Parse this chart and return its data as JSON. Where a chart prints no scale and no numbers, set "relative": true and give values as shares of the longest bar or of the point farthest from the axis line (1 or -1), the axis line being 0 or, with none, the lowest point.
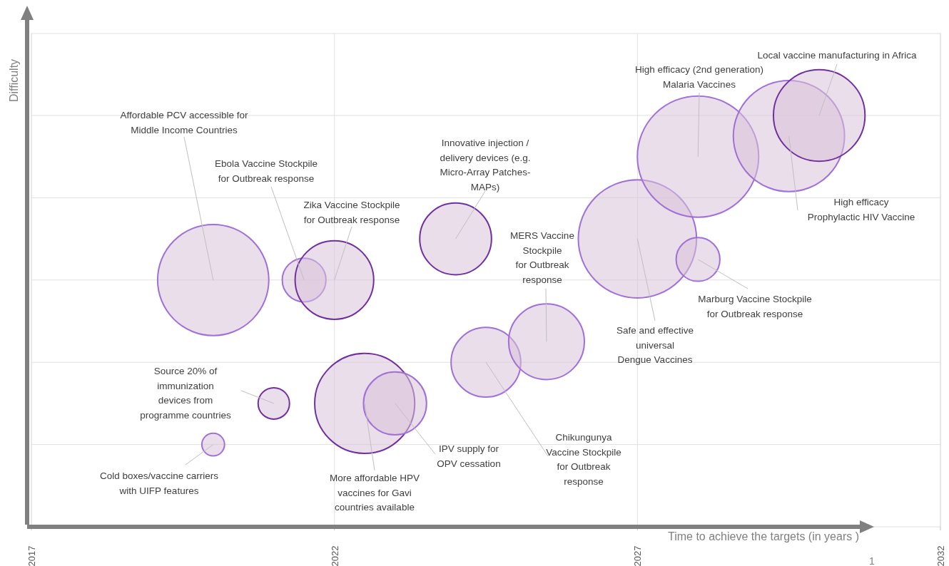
{
  "chart_data": {
    "type": "bubble",
    "xlabel": "Time to achieve the targets (in years )",
    "ylabel": "Difficulty",
    "relative": true,
    "grid": true,
    "xlim": [
      2017,
      2032
    ],
    "xticks": [
      2017,
      2022,
      2027,
      2032
    ],
    "x": [
      2020.0,
      2021.5,
      2022.0,
      2024.0,
      2021.0,
      2020.0,
      2022.5,
      2023.0,
      2024.5,
      2025.5,
      2027.0,
      2028.0,
      2028.0,
      2029.5,
      2030.0
    ],
    "values": [
      0.6,
      0.6,
      0.6,
      0.7,
      0.3,
      0.2,
      0.3,
      0.3,
      0.4,
      0.45,
      0.7,
      0.65,
      0.9,
      0.95,
      1.0
    ],
    "sizes": [
      0.84,
      0.13,
      0.42,
      0.35,
      0.067,
      0.035,
      0.68,
      0.27,
      0.33,
      0.39,
      0.95,
      0.13,
      1,
      0.84,
      0.57
    ],
    "colors": [
      "#a070d8",
      "#a070d8",
      "#7030a0",
      "#7030a0",
      "#7030a0",
      "#a070d8",
      "#7030a0",
      "#a070d8",
      "#a070d8",
      "#a070d8",
      "#a070d8",
      "#a070d8",
      "#a070d8",
      "#a070d8",
      "#7030a0"
    ],
    "annotations": [
      {
        "text": "Affordable PCV accessible for\nMiddle Income Countries",
        "x": 2020.0,
        "y": 0.6
      },
      {
        "text": "Ebola Vaccine Stockpile\nfor Outbreak response",
        "x": 2021.5,
        "y": 0.6
      },
      {
        "text": "Zika Vaccine Stockpile\nfor Outbreak response",
        "x": 2022.0,
        "y": 0.6
      },
      {
        "text": "Innovative injection /\ndelivery devices (e.g.\nMicro-Array Patches-\nMAPs)",
        "x": 2024.0,
        "y": 0.7
      },
      {
        "text": "Source 20% of\nimmunization\ndevices from\nprogramme countries",
        "x": 2021.0,
        "y": 0.3
      },
      {
        "text": "Cold boxes/vaccine carriers\nwith UIFP features",
        "x": 2020.0,
        "y": 0.2
      },
      {
        "text": "More affordable HPV\nvaccines for Gavi\ncountries available",
        "x": 2022.5,
        "y": 0.3
      },
      {
        "text": "IPV supply for\nOPV cessation",
        "x": 2023.0,
        "y": 0.3
      },
      {
        "text": "Chikungunya\nVaccine Stockpile\nfor Outbreak\nresponse",
        "x": 2024.5,
        "y": 0.4
      },
      {
        "text": "MERS Vaccine\nStockpile\nfor Outbreak\nresponse",
        "x": 2025.5,
        "y": 0.45
      },
      {
        "text": "Safe and effective\nuniversal\nDengue Vaccines",
        "x": 2027.0,
        "y": 0.7
      },
      {
        "text": "Marburg Vaccine Stockpile\nfor Outbreak response",
        "x": 2028.0,
        "y": 0.65
      },
      {
        "text": "High efficacy (2nd generation)\nMalaria Vaccines",
        "x": 2028.0,
        "y": 0.9
      },
      {
        "text": "High efficacy\nProphylactic HIV Vaccine",
        "x": 2029.5,
        "y": 0.95
      },
      {
        "text": "Local vaccine manufacturing in Africa",
        "x": 2030.0,
        "y": 1.0
      },
      "1"
    ]
  }
}
